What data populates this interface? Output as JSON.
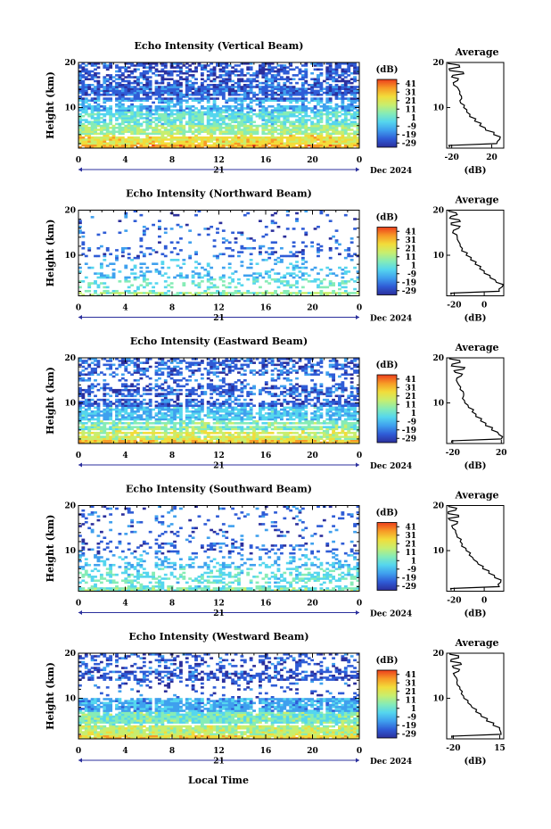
{
  "figure": {
    "xlabel": "Local Time",
    "date_label": "Dec 2024",
    "day_label": "21",
    "ylabel": "Height (km)",
    "colorbar_unit": "(dB)",
    "colorbar_ticks": [
      "41",
      "31",
      "21",
      "11",
      "1",
      "-9",
      "-19",
      "-29"
    ],
    "colorbar_range": [
      -34,
      46
    ],
    "colormap": [
      "#2b2f9c",
      "#2f5cd6",
      "#3fa0ee",
      "#55d6ee",
      "#86ecb6",
      "#c8ee6e",
      "#f2dc3a",
      "#f79a26",
      "#ec3e1c"
    ],
    "profile_title": "Average",
    "profile_xlabel": "(dB)"
  },
  "chart_data": [
    {
      "type": "heatmap",
      "title": "Echo Intensity (Vertical Beam)",
      "x_ticks": [
        "0",
        "4",
        "8",
        "12",
        "16",
        "20",
        "0"
      ],
      "xlim": [
        0,
        24
      ],
      "y_ticks": [
        "20",
        "10"
      ],
      "ylim": [
        1,
        20
      ],
      "avg_profile": {
        "type": "line",
        "title": "Average",
        "x_ticks": [
          "-20",
          "20"
        ],
        "xlim": [
          -25,
          32
        ],
        "heights": [
          1.2,
          2,
          3,
          4,
          5,
          6,
          7,
          8,
          9,
          10,
          11,
          12,
          13,
          14,
          15,
          16,
          16.8,
          17.5,
          18.2,
          19,
          19.8
        ],
        "values": [
          -22,
          25,
          28,
          22,
          14,
          8,
          3,
          -2,
          -5,
          -8,
          -11,
          -10,
          -12,
          -13,
          -18,
          -14,
          -20,
          -8,
          -22,
          -12,
          -24
        ]
      }
    },
    {
      "type": "heatmap",
      "title": "Echo Intensity (Northward Beam)",
      "x_ticks": [
        "0",
        "4",
        "8",
        "12",
        "16",
        "20",
        "0"
      ],
      "xlim": [
        0,
        24
      ],
      "y_ticks": [
        "20",
        "10"
      ],
      "ylim": [
        1,
        20
      ],
      "avg_profile": {
        "type": "line",
        "title": "Average",
        "x_ticks": [
          "-20",
          "0"
        ],
        "xlim": [
          -25,
          13
        ],
        "heights": [
          1.2,
          2,
          3,
          4,
          5,
          6,
          7,
          8,
          9,
          10,
          11,
          12,
          13,
          14,
          15,
          16,
          16.8,
          17.5,
          18.2,
          19,
          19.8
        ],
        "values": [
          -22,
          10,
          12,
          8,
          4,
          0,
          -3,
          -6,
          -9,
          -12,
          -15,
          -16,
          -17,
          -18,
          -21,
          -17,
          -22,
          -16,
          -23,
          -18,
          -24
        ]
      }
    },
    {
      "type": "heatmap",
      "title": "Echo Intensity (Eastward Beam)",
      "x_ticks": [
        "0",
        "4",
        "8",
        "12",
        "16",
        "20",
        "0"
      ],
      "xlim": [
        0,
        24
      ],
      "y_ticks": [
        "20",
        "10"
      ],
      "ylim": [
        1,
        20
      ],
      "avg_profile": {
        "type": "line",
        "title": "Average",
        "x_ticks": [
          "-20",
          "20"
        ],
        "xlim": [
          -25,
          22
        ],
        "heights": [
          1.2,
          2,
          3,
          4,
          5,
          6,
          7,
          8,
          9,
          10,
          11,
          12,
          13,
          14,
          15,
          16,
          16.8,
          17.5,
          18.2,
          19,
          19.8
        ],
        "values": [
          -21,
          20,
          18,
          12,
          7,
          3,
          -1,
          -4,
          -7,
          -10,
          -12,
          -11,
          -14,
          -15,
          -17,
          -13,
          -18,
          -11,
          -21,
          -14,
          -23
        ]
      }
    },
    {
      "type": "heatmap",
      "title": "Echo Intensity (Southward Beam)",
      "x_ticks": [
        "0",
        "4",
        "8",
        "12",
        "16",
        "20",
        "0"
      ],
      "xlim": [
        0,
        24
      ],
      "y_ticks": [
        "20",
        "10"
      ],
      "ylim": [
        1,
        20
      ],
      "avg_profile": {
        "type": "line",
        "title": "Average",
        "x_ticks": [
          "-20",
          "0"
        ],
        "xlim": [
          -25,
          13
        ],
        "heights": [
          1.2,
          2,
          3,
          4,
          5,
          6,
          7,
          8,
          9,
          10,
          11,
          12,
          13,
          14,
          15,
          16,
          16.8,
          17.5,
          18.2,
          19,
          19.8
        ],
        "values": [
          -22,
          10,
          11,
          7,
          3,
          -1,
          -4,
          -7,
          -10,
          -12,
          -15,
          -16,
          -18,
          -19,
          -21,
          -18,
          -23,
          -17,
          -24,
          -19,
          -24
        ]
      }
    },
    {
      "type": "heatmap",
      "title": "Echo Intensity (Westward Beam)",
      "x_ticks": [
        "0",
        "4",
        "8",
        "12",
        "16",
        "20",
        "0"
      ],
      "xlim": [
        0,
        24
      ],
      "y_ticks": [
        "20",
        "10"
      ],
      "ylim": [
        1,
        20
      ],
      "avg_profile": {
        "type": "line",
        "title": "Average",
        "x_ticks": [
          "-20",
          "15"
        ],
        "xlim": [
          -25,
          18
        ],
        "heights": [
          1.2,
          2,
          3,
          4,
          5,
          6,
          7,
          8,
          9,
          10,
          11,
          12,
          13,
          14,
          15,
          16,
          16.8,
          17.5,
          18.2,
          19,
          19.8
        ],
        "values": [
          -21,
          16,
          15,
          10,
          5,
          1,
          -3,
          -6,
          -9,
          -12,
          -14,
          -15,
          -17,
          -17,
          -19,
          -16,
          -20,
          -14,
          -22,
          -16,
          -23
        ]
      }
    }
  ]
}
